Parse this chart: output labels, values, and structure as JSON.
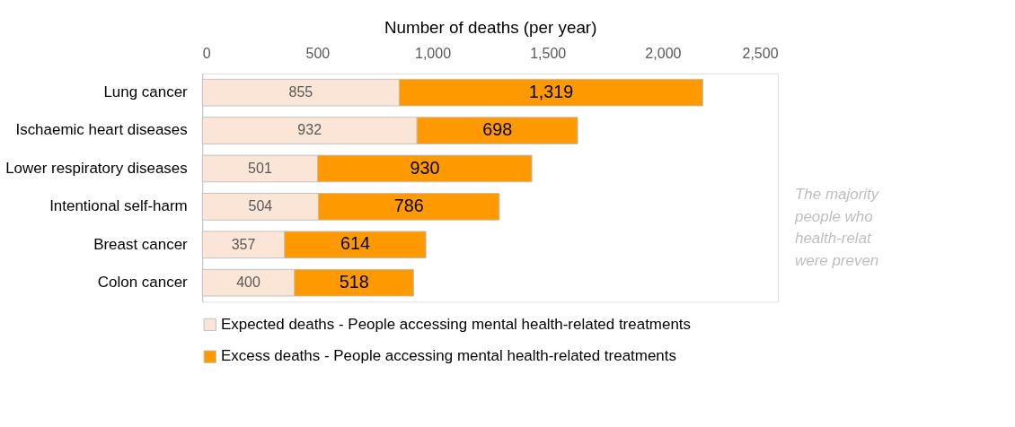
{
  "chart_data": {
    "type": "bar",
    "orientation": "horizontal",
    "stacked": true,
    "xlabel": "Number of deaths (per year)",
    "categories": [
      "Lung cancer",
      "Ischaemic heart diseases",
      "Lower respiratory diseases",
      "Intentional self-harm",
      "Breast cancer",
      "Colon cancer"
    ],
    "series": [
      {
        "name": "Expected deaths - People accessing mental health-related treatments",
        "color": "#fbe5d6",
        "values": [
          855,
          932,
          501,
          504,
          357,
          400
        ],
        "value_labels": [
          "855",
          "932",
          "501",
          "504",
          "357",
          "400"
        ]
      },
      {
        "name": "Excess deaths - People accessing mental health-related treatments",
        "color": "#ff9900",
        "values": [
          1319,
          698,
          930,
          786,
          614,
          518
        ],
        "value_labels": [
          "1,319",
          "698",
          "930",
          "786",
          "614",
          "518"
        ]
      }
    ],
    "xlim": [
      0,
      2500
    ],
    "xticks": [
      0,
      500,
      {
        "value": 1000,
        "label": "1,000"
      },
      {
        "value": 1500,
        "label": "1,500"
      },
      {
        "value": 2000,
        "label": "2,000"
      },
      {
        "value": 2500,
        "label": "2,500"
      }
    ],
    "grid": false,
    "legend": "bottom",
    "annotations": [
      "The majority\npeople who\nhealth-relat\nwere preven"
    ]
  }
}
